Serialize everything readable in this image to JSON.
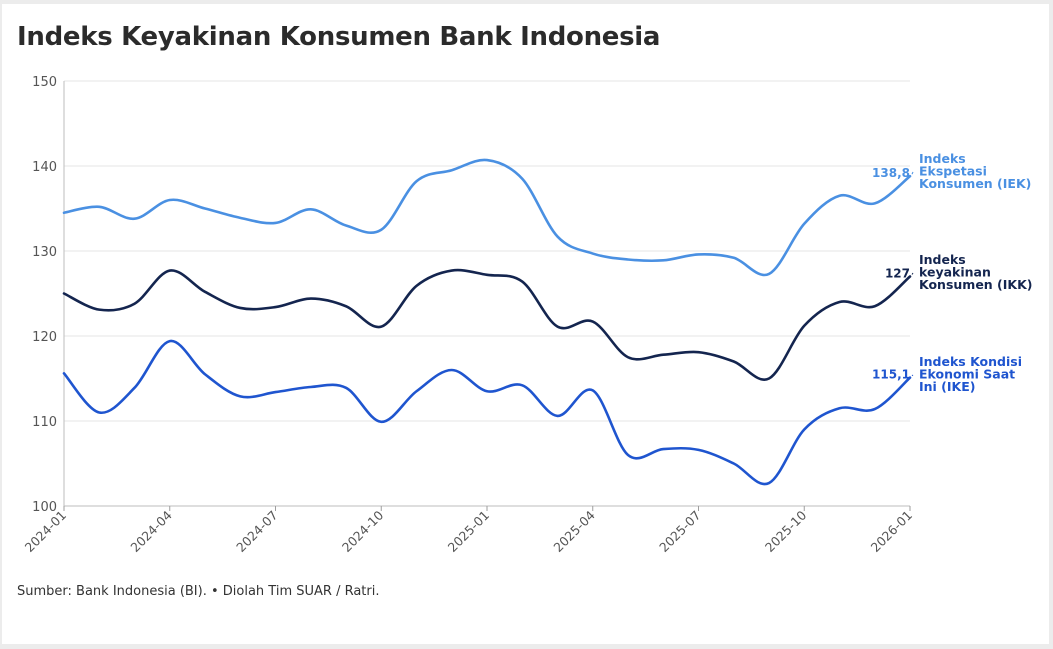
{
  "title": "Indeks Keyakinan Konsumen Bank Indonesia",
  "source": "Sumber: Bank Indonesia (BI). • Diolah Tim SUAR / Ratri.",
  "chart_data": {
    "type": "line",
    "title": "Indeks Keyakinan Konsumen Bank Indonesia",
    "xlabel": "",
    "ylabel": "",
    "ylim": [
      100,
      150
    ],
    "yticks": [
      100,
      110,
      120,
      130,
      140,
      150
    ],
    "yticklabels": [
      "100",
      "110",
      "120",
      "130",
      "140",
      "150"
    ],
    "xticklabels": [
      "2024-01",
      "2024-04",
      "2024-07",
      "2024-10",
      "2025-01",
      "2025-04",
      "2025-07",
      "2025-10",
      "2026-01"
    ],
    "grid": "horizontal",
    "legend": "direct labels at line ends (right)",
    "x": [
      "2024-01",
      "2024-02",
      "2024-03",
      "2024-04",
      "2024-05",
      "2024-06",
      "2024-07",
      "2024-08",
      "2024-09",
      "2024-10",
      "2024-11",
      "2024-12",
      "2025-01",
      "2025-02",
      "2025-03",
      "2025-04",
      "2025-05",
      "2025-06",
      "2025-07",
      "2025-08",
      "2025-09",
      "2025-10",
      "2025-11",
      "2025-12",
      "2026-01"
    ],
    "series": [
      {
        "name_lines": [
          "Indeks",
          "Ekspetasi",
          "Konsumen (IEK)"
        ],
        "end_label": "138,8",
        "color": "#4a90e2",
        "values": [
          134.5,
          135.2,
          133.8,
          136.0,
          135.0,
          133.9,
          133.3,
          134.9,
          133.0,
          132.5,
          138.2,
          139.5,
          140.7,
          138.5,
          131.7,
          129.7,
          129.0,
          128.9,
          129.6,
          129.2,
          127.3,
          133.2,
          136.5,
          135.6,
          138.8
        ]
      },
      {
        "name_lines": [
          "Indeks",
          "keyakinan",
          "Konsumen (IKK)"
        ],
        "end_label": "127",
        "color": "#14254f",
        "values": [
          125.0,
          123.1,
          123.8,
          127.7,
          125.2,
          123.3,
          123.4,
          124.4,
          123.5,
          121.1,
          125.9,
          127.7,
          127.2,
          126.4,
          121.1,
          121.7,
          117.5,
          117.8,
          118.1,
          117.0,
          115.0,
          121.2,
          124.0,
          123.5,
          127.0
        ]
      },
      {
        "name_lines": [
          "Indeks Kondisi",
          "Ekonomi Saat",
          "Ini (IKE)"
        ],
        "end_label": "115,1",
        "color": "#1f55cf",
        "values": [
          115.6,
          111.0,
          113.9,
          119.4,
          115.5,
          112.9,
          113.4,
          114.0,
          113.9,
          109.9,
          113.5,
          116.0,
          113.5,
          114.2,
          110.6,
          113.6,
          106.0,
          106.7,
          106.6,
          105.0,
          102.7,
          109.0,
          111.5,
          111.4,
          115.1
        ]
      }
    ]
  }
}
